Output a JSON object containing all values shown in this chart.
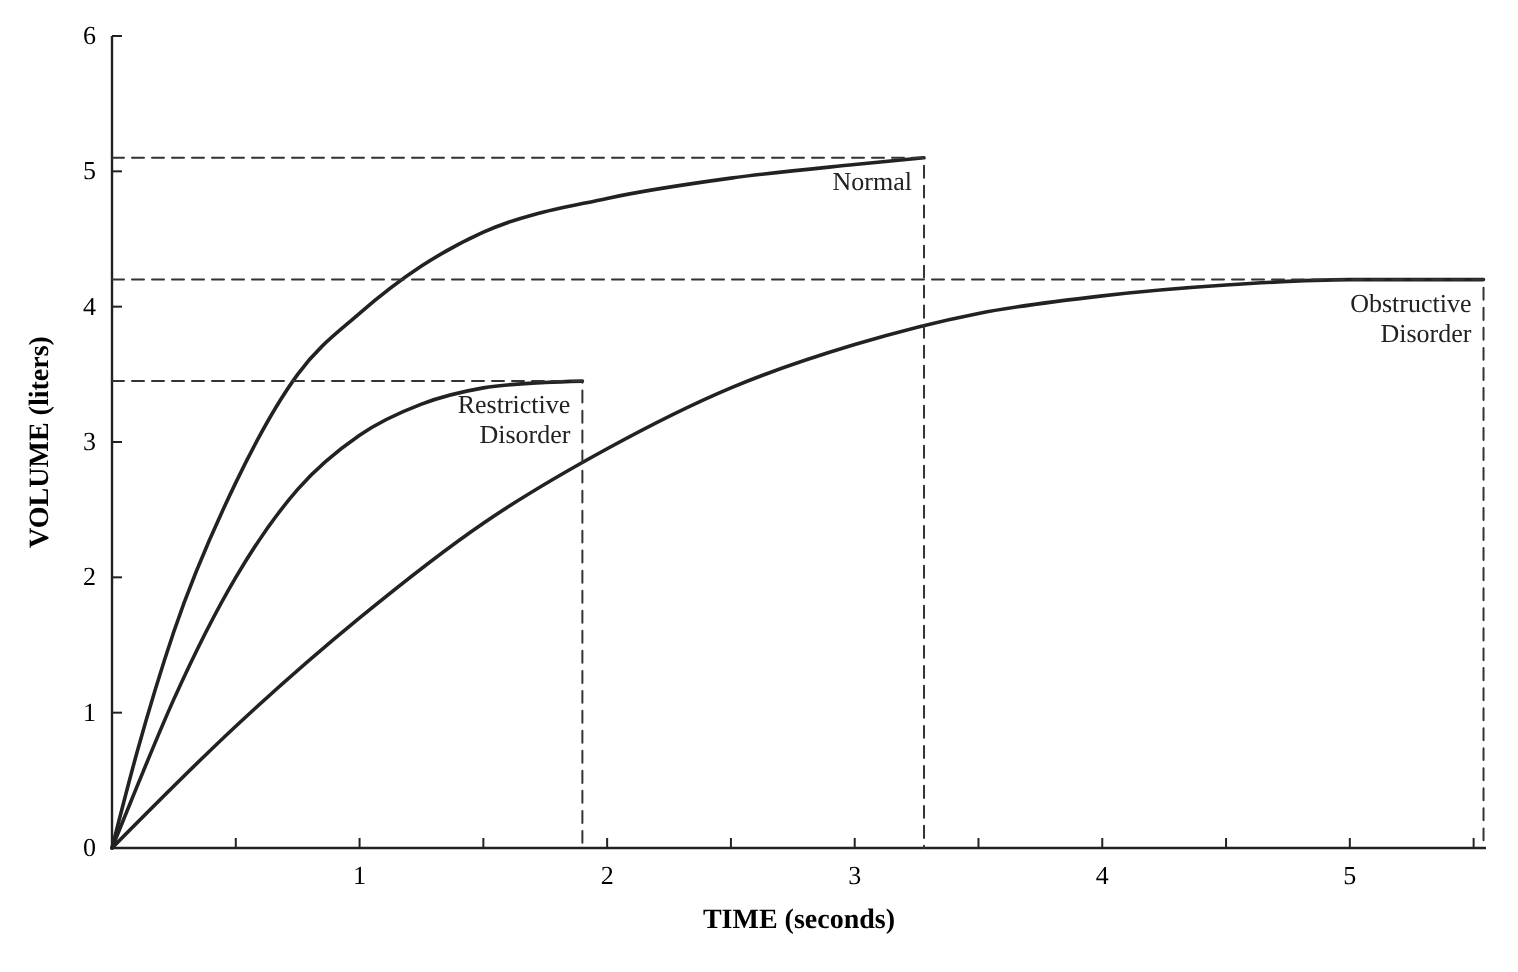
{
  "chart_data": {
    "type": "line",
    "xlabel": "TIME (seconds)",
    "ylabel": "VOLUME (liters)",
    "xlim": [
      0,
      5.55
    ],
    "ylim": [
      0,
      6
    ],
    "xticks": [
      {
        "value": 0,
        "label": null
      },
      {
        "value": 0.5,
        "label": null
      },
      1,
      {
        "value": 1.5,
        "label": null
      },
      2,
      {
        "value": 2.5,
        "label": null
      },
      3,
      {
        "value": 3.5,
        "label": null
      },
      4,
      {
        "value": 4.5,
        "label": null
      },
      5,
      {
        "value": 5.5,
        "label": null
      }
    ],
    "yticks": [
      0,
      1,
      2,
      3,
      4,
      5,
      6
    ],
    "series": [
      {
        "name": "Normal",
        "color": "#222222",
        "x": [
          0,
          0.1,
          0.25,
          0.5,
          0.75,
          1,
          1.25,
          1.5,
          2,
          2.5,
          3,
          3.28
        ],
        "values": [
          0,
          0.7,
          1.6,
          2.7,
          3.5,
          3.95,
          4.3,
          4.55,
          4.8,
          4.95,
          5.05,
          5.1
        ]
      },
      {
        "name": "Restrictive Disorder",
        "color": "#222222",
        "x": [
          0,
          0.1,
          0.25,
          0.5,
          0.75,
          1,
          1.25,
          1.5,
          1.75,
          1.9
        ],
        "values": [
          0,
          0.45,
          1.1,
          2.0,
          2.65,
          3.05,
          3.28,
          3.4,
          3.44,
          3.45
        ]
      },
      {
        "name": "Obstructive Disorder",
        "color": "#222222",
        "x": [
          0,
          0.5,
          1,
          1.5,
          2,
          2.5,
          3,
          3.5,
          4,
          4.5,
          5,
          5.54
        ],
        "values": [
          0,
          0.9,
          1.7,
          2.4,
          2.95,
          3.4,
          3.72,
          3.95,
          4.08,
          4.16,
          4.2,
          4.2
        ]
      },
      {
        "color": "#333333",
        "line_style": "dashed",
        "x": [
          0,
          3.28,
          3.28
        ],
        "values": [
          5.1,
          5.1,
          0
        ]
      },
      {
        "color": "#333333",
        "line_style": "dashed",
        "x": [
          0,
          1.9,
          1.9
        ],
        "values": [
          3.45,
          3.45,
          0
        ]
      },
      {
        "color": "#333333",
        "line_style": "dashed",
        "x": [
          0,
          5.54,
          5.54
        ],
        "values": [
          4.2,
          4.2,
          0
        ]
      }
    ]
  }
}
